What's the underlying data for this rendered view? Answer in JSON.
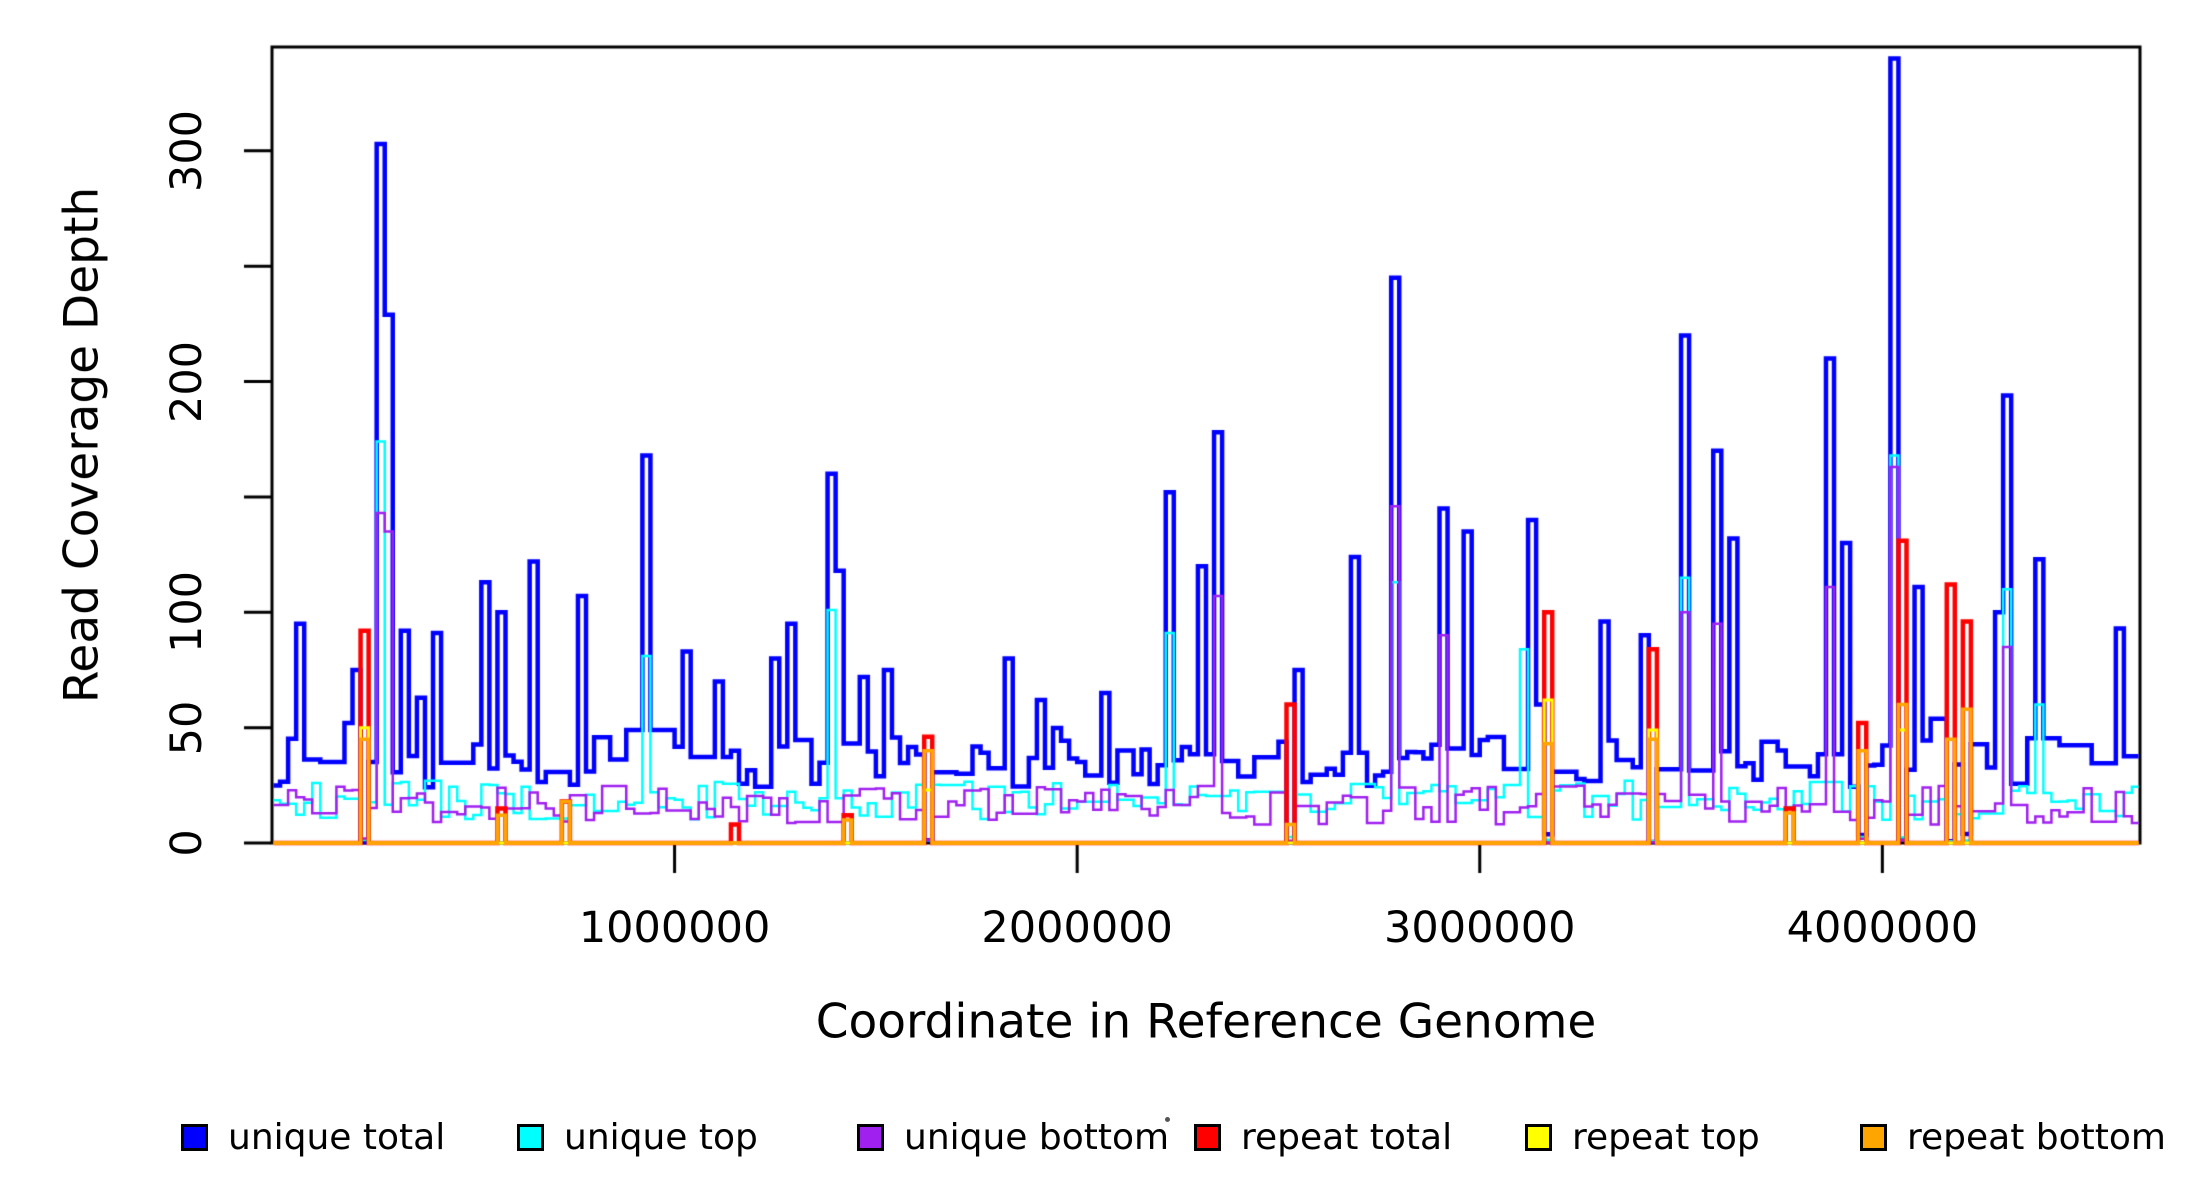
{
  "chart_data": {
    "type": "step_line",
    "title": "",
    "x_axis": {
      "label": "Coordinate in Reference Genome",
      "min": 0,
      "max": 4640000,
      "ticks": [
        1000000,
        2000000,
        3000000,
        4000000
      ],
      "tick_labels": [
        "1000000",
        "2000000",
        "3000000",
        "4000000"
      ]
    },
    "y_axis": {
      "label": "Read Coverage Depth",
      "min": 0,
      "max": 345,
      "ticks": [
        0,
        50,
        100,
        150,
        200,
        250,
        300
      ],
      "labeled_ticks": [
        0,
        50,
        100,
        200,
        300
      ],
      "tick_labels": [
        "0",
        "50",
        "100",
        "200",
        "300"
      ]
    },
    "axis_color": "#000000",
    "background_color": "#ffffff",
    "bin_size": 20000,
    "noise": {
      "seed": 77,
      "dip_threshold": 40,
      "unique_total": {
        "base": 24,
        "range": 22,
        "plateau": 0.38,
        "spike_chance": 0.15,
        "spike_extra": 22,
        "min": 14
      },
      "unique_top": {
        "base": 10,
        "range": 17,
        "plateau": 0.3
      },
      "unique_bottom": {
        "base": 8,
        "range": 17,
        "plateau": 0.3
      }
    },
    "series": [
      {
        "name": "unique total",
        "color": "#0000ff",
        "line_width": 4.5,
        "peaks": [
          [
            60000,
            95
          ],
          [
            180000,
            52
          ],
          [
            210000,
            75
          ],
          [
            265000,
            303
          ],
          [
            285000,
            229
          ],
          [
            330000,
            92
          ],
          [
            370000,
            63
          ],
          [
            410000,
            91
          ],
          [
            520000,
            113
          ],
          [
            560000,
            100
          ],
          [
            650000,
            122
          ],
          [
            760000,
            107
          ],
          [
            930000,
            168
          ],
          [
            1030000,
            83
          ],
          [
            1100000,
            70
          ],
          [
            1240000,
            80
          ],
          [
            1290000,
            95
          ],
          [
            1380000,
            160
          ],
          [
            1400000,
            118
          ],
          [
            1470000,
            72
          ],
          [
            1520000,
            75
          ],
          [
            1830000,
            80
          ],
          [
            1900000,
            62
          ],
          [
            2070000,
            65
          ],
          [
            2220000,
            152
          ],
          [
            2300000,
            120
          ],
          [
            2350000,
            178
          ],
          [
            2540000,
            75
          ],
          [
            2690000,
            124
          ],
          [
            2790000,
            245
          ],
          [
            2900000,
            145
          ],
          [
            2960000,
            135
          ],
          [
            3120000,
            140
          ],
          [
            3150000,
            60
          ],
          [
            3300000,
            96
          ],
          [
            3400000,
            90
          ],
          [
            3510000,
            220
          ],
          [
            3590000,
            170
          ],
          [
            3630000,
            132
          ],
          [
            3860000,
            210
          ],
          [
            3900000,
            130
          ],
          [
            4030000,
            340
          ],
          [
            4080000,
            111
          ],
          [
            4280000,
            100
          ],
          [
            4310000,
            194
          ],
          [
            4390000,
            123
          ],
          [
            4590000,
            93
          ]
        ]
      },
      {
        "name": "unique top",
        "color": "#00ffff",
        "line_width": 2.5,
        "peaks": [
          [
            265000,
            174
          ],
          [
            930000,
            81
          ],
          [
            1380000,
            101
          ],
          [
            2220000,
            91
          ],
          [
            2790000,
            113
          ],
          [
            3110000,
            84
          ],
          [
            3510000,
            115
          ],
          [
            4030000,
            168
          ],
          [
            4310000,
            110
          ],
          [
            4390000,
            60
          ]
        ]
      },
      {
        "name": "unique bottom",
        "color": "#a020f0",
        "line_width": 2.5,
        "peaks": [
          [
            265000,
            143
          ],
          [
            285000,
            135
          ],
          [
            2350000,
            107
          ],
          [
            2790000,
            146
          ],
          [
            2900000,
            90
          ],
          [
            3510000,
            100
          ],
          [
            3590000,
            95
          ],
          [
            3860000,
            111
          ],
          [
            4030000,
            163
          ],
          [
            4310000,
            85
          ]
        ]
      },
      {
        "name": "repeat total",
        "color": "#ff0000",
        "line_width": 4.5,
        "peaks": [
          [
            225000,
            92
          ],
          [
            570000,
            15
          ],
          [
            730000,
            18
          ],
          [
            1140000,
            8
          ],
          [
            1420000,
            12
          ],
          [
            1630000,
            46
          ],
          [
            2520000,
            60
          ],
          [
            3170000,
            100
          ],
          [
            3430000,
            84
          ],
          [
            3770000,
            15
          ],
          [
            3940000,
            52
          ],
          [
            4040000,
            131
          ],
          [
            4170000,
            112
          ],
          [
            4210000,
            96
          ]
        ]
      },
      {
        "name": "repeat top",
        "color": "#ffff00",
        "line_width": 3,
        "peaks": [
          [
            225000,
            50
          ],
          [
            1630000,
            23
          ],
          [
            3170000,
            62
          ],
          [
            3430000,
            49
          ],
          [
            4040000,
            49
          ]
        ]
      },
      {
        "name": "repeat bottom",
        "color": "#ffa500",
        "line_width": 3.5,
        "peaks": [
          [
            225000,
            45
          ],
          [
            570000,
            12
          ],
          [
            730000,
            18
          ],
          [
            1430000,
            10
          ],
          [
            1630000,
            40
          ],
          [
            2520000,
            8
          ],
          [
            3170000,
            43
          ],
          [
            3430000,
            45
          ],
          [
            3770000,
            13
          ],
          [
            3940000,
            40
          ],
          [
            4040000,
            60
          ],
          [
            4170000,
            45
          ],
          [
            4210000,
            58
          ]
        ]
      }
    ],
    "legend_position": "bottom"
  }
}
